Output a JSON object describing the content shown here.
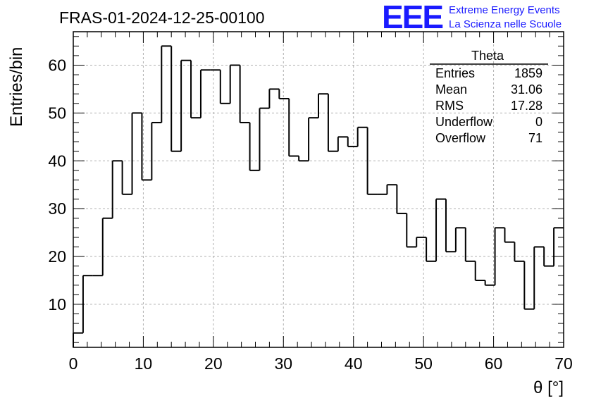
{
  "title": "FRAS-01-2024-12-25-00100",
  "logo": {
    "mark": "EEE",
    "line1": "Extreme Energy Events",
    "line2": "La Scienza nelle Scuole",
    "color": "#1a1aff"
  },
  "stats": {
    "name": "Theta",
    "rows": [
      {
        "label": "Entries",
        "value": "1859"
      },
      {
        "label": "Mean",
        "value": "31.06"
      },
      {
        "label": "RMS",
        "value": "17.28"
      },
      {
        "label": "Underflow",
        "value": "0"
      },
      {
        "label": "Overflow",
        "value": "71"
      }
    ]
  },
  "chart_data": {
    "type": "bar",
    "histogram": true,
    "xlabel": "θ [°]",
    "ylabel": "Entries/bin",
    "xlim": [
      0,
      70
    ],
    "ylim": [
      1,
      67
    ],
    "bin_width": 1.4,
    "x_ticks": [
      0,
      10,
      20,
      30,
      40,
      50,
      60,
      70
    ],
    "y_ticks": [
      10,
      20,
      30,
      40,
      50,
      60
    ],
    "grid": true,
    "line_color": "#000000",
    "values": [
      4,
      16,
      16,
      28,
      40,
      33,
      50,
      36,
      48,
      64,
      42,
      61,
      49,
      59,
      59,
      52,
      60,
      48,
      38,
      51,
      55,
      53,
      41,
      40,
      49,
      54,
      42,
      45,
      43,
      47,
      33,
      33,
      35,
      29,
      22,
      24,
      19,
      32,
      21,
      26,
      19,
      15,
      14,
      26,
      23,
      19,
      9,
      22,
      18,
      26
    ]
  }
}
